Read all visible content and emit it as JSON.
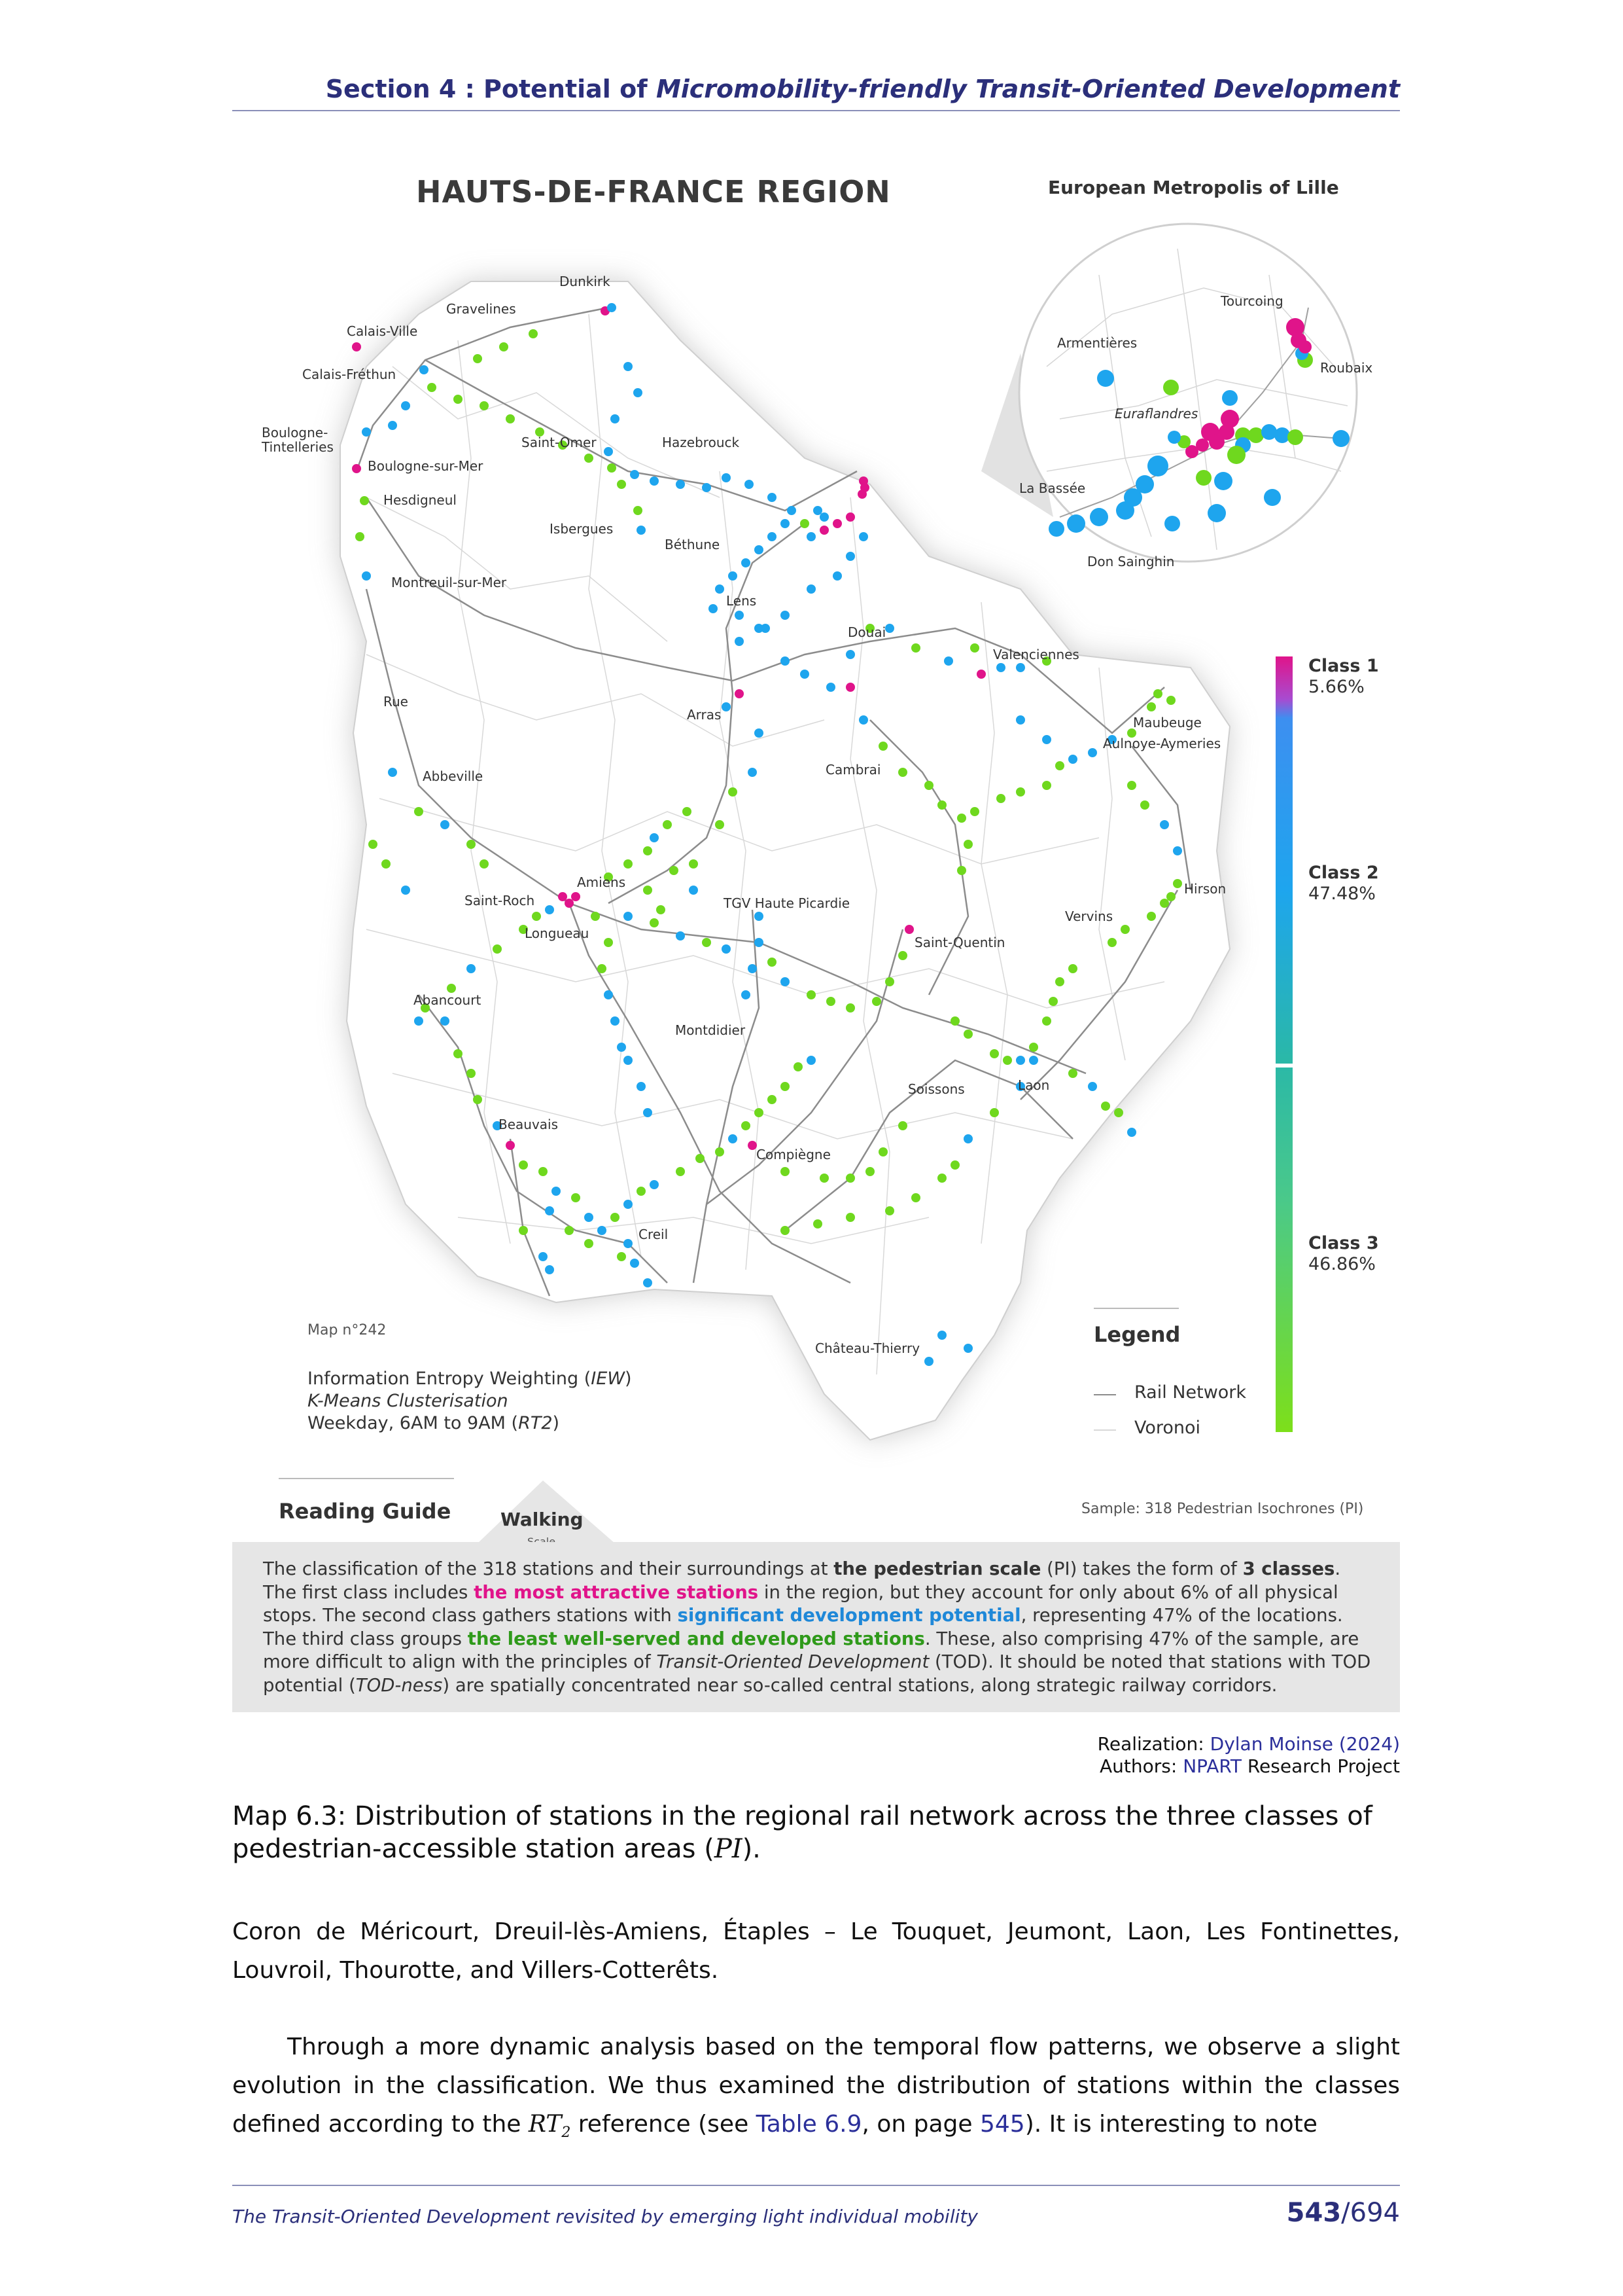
{
  "header": {
    "prefix": "Section 4 : Potential of ",
    "emphasis": "Micromobility-friendly Transit-Oriented Development"
  },
  "map": {
    "title": "HAUTS-DE-FRANCE REGION",
    "inset_title": "European Metropolis of Lille",
    "cities": [
      "Dunkirk",
      "Gravelines",
      "Calais-Ville",
      "Calais-Fréthun",
      "Boulogne-\nTintelleries",
      "Saint-Omer",
      "Hazebrouck",
      "Boulogne-sur-Mer",
      "Hesdigneul",
      "Isbergues",
      "Béthune",
      "Montreuil-sur-Mer",
      "Lens",
      "Douai",
      "Valenciennes",
      "Arras",
      "Rue",
      "Maubeuge",
      "Aulnoye-Aymeries",
      "Cambrai",
      "Abbeville",
      "Hirson",
      "Amiens",
      "Saint-Roch",
      "TGV Haute Picardie",
      "Longueau",
      "Vervins",
      "Saint-Quentin",
      "Abancourt",
      "Montdidier",
      "Laon",
      "Soissons",
      "Beauvais",
      "Compiègne",
      "Creil",
      "Château-Thierry"
    ],
    "inset_cities": [
      "Tourcoing",
      "Armentières",
      "Roubaix",
      "Euraflandres",
      "La Bassée",
      "Don Sainghin"
    ],
    "map_number": "Map n°242",
    "method_line1": "Information Entropy Weighting (",
    "method_line1_em": "IEW",
    "method_line1_end": ")",
    "method_line2": "K-Means Clusterisation",
    "method_line3": "Weekday, 6AM to 9AM (",
    "method_line3_em": "RT2",
    "method_line3_end": ")",
    "legend_title": "Legend",
    "legend_rail": "Rail Network",
    "legend_voronoi": "Voronoi",
    "classes": [
      {
        "name": "Class 1",
        "share": "5.66%",
        "color": "#e0148a"
      },
      {
        "name": "Class 2",
        "share": "47.48%",
        "color": "#1ea5ee"
      },
      {
        "name": "Class 3",
        "share": "46.86%",
        "color": "#6fd81e"
      }
    ]
  },
  "guide": {
    "title": "Reading Guide",
    "walking": "Walking",
    "scale": "Scale",
    "sample": "Sample: 318 Pedestrian Isochrones (PI)",
    "p1": "The classification of the 318 stations and their surroundings at ",
    "p1_b": "the pedestrian scale",
    "p1_c": " (PI) takes the form of ",
    "p1_d": "3 classes",
    "p1_e": ".",
    "p2": "The first class includes ",
    "p2_pink": "the most attractive stations",
    "p2_c": " in the region, but they account for only about 6% of all physical stops. The second class gathers stations with ",
    "p2_blue": "significant development potential",
    "p2_d": ", representing 47% of the locations. The third class groups ",
    "p2_green": "the least well-served and developed stations",
    "p2_e": ". These, also comprising 47% of the sample, are more difficult to align with the principles of ",
    "p2_it": "Transit-Oriented Development",
    "p2_f": " (TOD). It should be noted that stations with TOD potential (",
    "p2_it2": "TOD-ness",
    "p2_g": ") are spatially concentrated near so-called central stations, along strategic railway corridors."
  },
  "credits": {
    "realization_label": "Realization:",
    "realization_value": "Dylan Moinse (2024)",
    "authors_label": "Authors:",
    "authors_value": "NPART",
    "authors_rest": " Research Project"
  },
  "caption": {
    "label": "Map 6.3:",
    "text": " Distribution of stations in the regional rail network across the three classes of pedestrian-accessible station areas (",
    "math": "PI",
    "end": ")."
  },
  "body": {
    "para1": "Coron de Méricourt, Dreuil-lès-Amiens, Étaples – Le Touquet, Jeumont, Laon, Les Fontinettes, Louvroil, Thourotte, and Villers-Cotterêts.",
    "para2_a": "Through a more dynamic analysis based on the temporal flow patterns, we observe a slight evolution in the classification. We thus examined the distribution of stations within the classes defined according to the ",
    "para2_math": "RT",
    "para2_sub": "2",
    "para2_b": " reference (see ",
    "para2_link1": "Table 6.9",
    "para2_c": ", on page ",
    "para2_link2": "545",
    "para2_d": "). It is interesting to note"
  },
  "footer": {
    "title": "The Transit-Oriented Development revisited by emerging light individual mobility",
    "page": "543",
    "total": "/694"
  }
}
